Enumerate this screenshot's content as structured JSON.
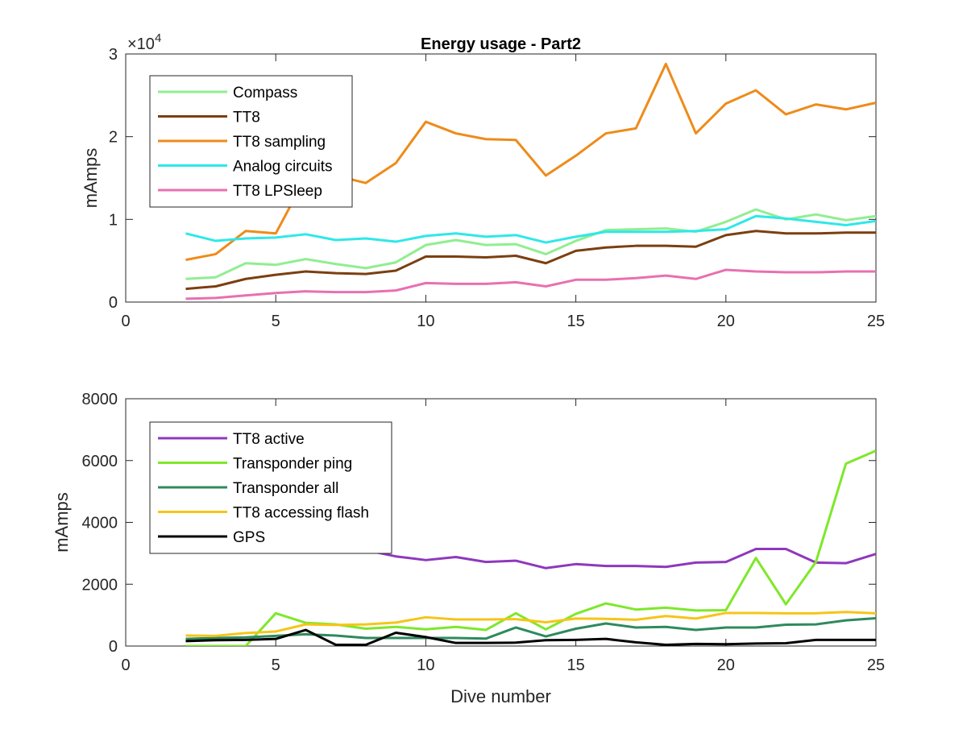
{
  "figure": {
    "background": "#ffffff",
    "axis_color": "#262626",
    "font_color": "#262626"
  },
  "chart_data": [
    {
      "type": "line",
      "title": "Energy usage - Part2",
      "xlabel": "",
      "ylabel": "mAmps",
      "exponent_label": "×10",
      "exponent_value": "4",
      "xlim": [
        0,
        25
      ],
      "ylim": [
        0,
        30000
      ],
      "xticks": [
        0,
        5,
        10,
        15,
        20,
        25
      ],
      "yticks": [
        0,
        10000,
        20000,
        30000
      ],
      "ytick_labels": [
        "0",
        "1",
        "2",
        "3"
      ],
      "grid": false,
      "legend_location": "top-left",
      "x": [
        2,
        3,
        4,
        5,
        6,
        7,
        8,
        9,
        10,
        11,
        12,
        13,
        14,
        15,
        16,
        17,
        18,
        19,
        20,
        21,
        22,
        23,
        24,
        25
      ],
      "series": [
        {
          "name": "Compass",
          "color": "#90ee90",
          "values": [
            2800,
            3000,
            4700,
            4500,
            5200,
            4600,
            4100,
            4800,
            6900,
            7500,
            6900,
            7000,
            5800,
            7400,
            8700,
            8800,
            8900,
            8500,
            9700,
            11200,
            10000,
            10600,
            9900,
            10400
          ]
        },
        {
          "name": "TT8",
          "color": "#7b3f10",
          "values": [
            1600,
            1900,
            2800,
            3300,
            3700,
            3500,
            3400,
            3800,
            5500,
            5500,
            5400,
            5600,
            4700,
            6200,
            6600,
            6800,
            6800,
            6700,
            8100,
            8600,
            8300,
            8300,
            8400,
            8400
          ]
        },
        {
          "name": "TT8 sampling",
          "color": "#ee8b1a",
          "values": [
            5100,
            5800,
            8600,
            8300,
            15100,
            15300,
            14400,
            16800,
            21800,
            20400,
            19700,
            19600,
            15300,
            17700,
            20400,
            21000,
            28800,
            20400,
            24000,
            25600,
            22700,
            23900,
            23300,
            24100
          ]
        },
        {
          "name": "Analog circuits",
          "color": "#2ee8e8",
          "values": [
            8300,
            7400,
            7700,
            7800,
            8200,
            7500,
            7700,
            7300,
            8000,
            8300,
            7900,
            8100,
            7200,
            7900,
            8500,
            8500,
            8500,
            8600,
            8800,
            10400,
            10100,
            9700,
            9300,
            9800
          ]
        },
        {
          "name": "TT8 LPSleep",
          "color": "#e870b0",
          "values": [
            400,
            500,
            800,
            1100,
            1300,
            1200,
            1200,
            1400,
            2300,
            2200,
            2200,
            2400,
            1900,
            2700,
            2700,
            2900,
            3200,
            2800,
            3900,
            3700,
            3600,
            3600,
            3700,
            3700
          ]
        }
      ]
    },
    {
      "type": "line",
      "title": "",
      "xlabel": "Dive number",
      "ylabel": "mAmps",
      "xlim": [
        0,
        25
      ],
      "ylim": [
        0,
        8000
      ],
      "xticks": [
        0,
        5,
        10,
        15,
        20,
        25
      ],
      "yticks": [
        0,
        2000,
        4000,
        6000,
        8000
      ],
      "ytick_labels": [
        "0",
        "2000",
        "4000",
        "6000",
        "8000"
      ],
      "grid": false,
      "legend_location": "top-left",
      "x": [
        2,
        3,
        4,
        5,
        6,
        7,
        8,
        9,
        10,
        11,
        12,
        13,
        14,
        15,
        16,
        17,
        18,
        19,
        20,
        21,
        22,
        23,
        24,
        25
      ],
      "series": [
        {
          "name": "TT8 active",
          "color": "#8e38bd",
          "values": [
            3100,
            3100,
            3100,
            3100,
            3100,
            3100,
            3100,
            2900,
            2780,
            2880,
            2720,
            2760,
            2520,
            2650,
            2590,
            2590,
            2560,
            2700,
            2720,
            3140,
            3140,
            2700,
            2680,
            2980
          ]
        },
        {
          "name": "Transponder ping",
          "color": "#7ee82a",
          "values": [
            0,
            0,
            0,
            1060,
            750,
            700,
            560,
            620,
            540,
            620,
            520,
            1060,
            540,
            1040,
            1380,
            1180,
            1240,
            1150,
            1160,
            2850,
            1350,
            2720,
            5900,
            6320
          ]
        },
        {
          "name": "Transponder all",
          "color": "#2e8a5e",
          "values": [
            230,
            260,
            280,
            330,
            380,
            340,
            260,
            260,
            260,
            260,
            240,
            600,
            310,
            560,
            730,
            600,
            620,
            520,
            600,
            600,
            690,
            700,
            830,
            900
          ]
        },
        {
          "name": "TT8 accessing flash",
          "color": "#f5c518",
          "values": [
            340,
            330,
            420,
            470,
            700,
            680,
            700,
            760,
            930,
            860,
            860,
            870,
            770,
            890,
            880,
            850,
            970,
            890,
            1070,
            1070,
            1060,
            1060,
            1100,
            1060
          ]
        },
        {
          "name": "GPS",
          "color": "#000000",
          "values": [
            160,
            190,
            200,
            230,
            520,
            40,
            40,
            430,
            290,
            100,
            100,
            110,
            190,
            200,
            230,
            120,
            40,
            70,
            60,
            80,
            90,
            200,
            200,
            200
          ]
        }
      ]
    }
  ]
}
